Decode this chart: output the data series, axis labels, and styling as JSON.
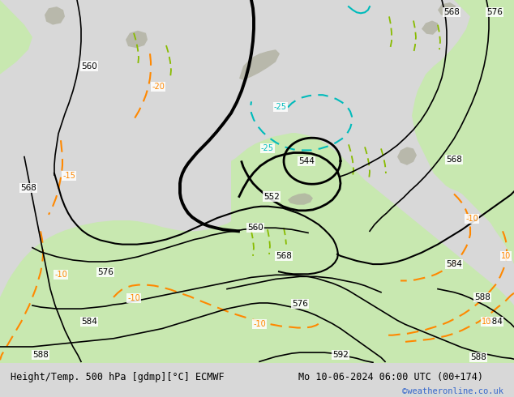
{
  "title_left": "Height/Temp. 500 hPa [gdmp][°C] ECMWF",
  "title_right": "Mo 10-06-2024 06:00 UTC (00+174)",
  "watermark": "©weatheronline.co.uk",
  "bg_map_color": "#d8d8d8",
  "land_color": "#c8e8b0",
  "sea_color": "#d8d8d8",
  "mountain_color": "#b0b0a0",
  "bottom_bar_color": "#d0d0d0",
  "title_color": "#000000",
  "watermark_color": "#3366cc",
  "fig_width": 6.34,
  "fig_height": 4.9,
  "dpi": 100,
  "contour_color": "#000000",
  "temp_color": "#ff8800",
  "cyan_color": "#00bbbb",
  "green_color": "#88bb00"
}
